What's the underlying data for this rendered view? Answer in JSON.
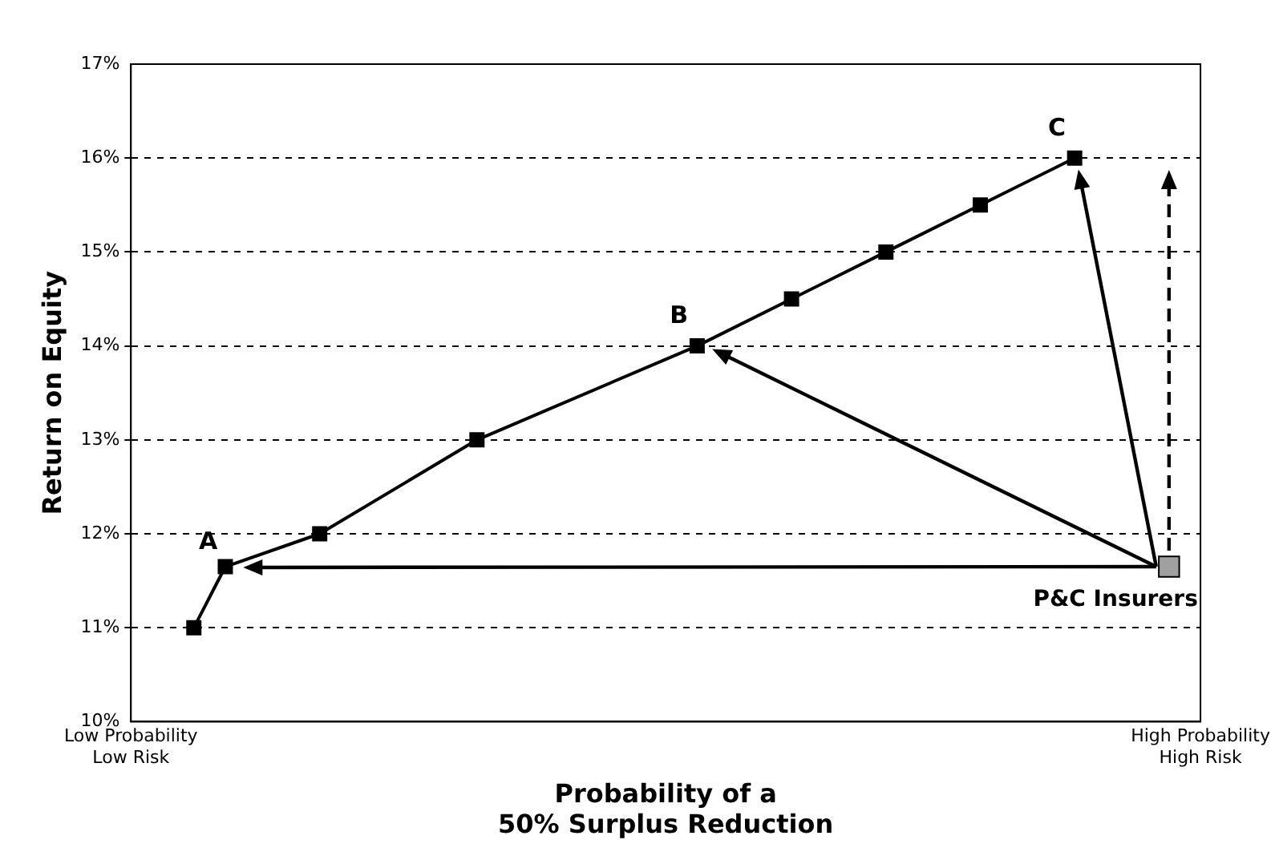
{
  "chart_data": {
    "type": "line",
    "xlabel": "Probability of a\n50% Surplus Reduction",
    "ylabel": "Return on Equity",
    "categories": [
      "Low Probability\nLow Risk",
      null,
      null,
      null,
      null,
      null,
      null,
      null,
      null,
      null,
      null,
      null,
      null,
      null,
      null,
      null,
      null,
      null,
      null,
      null,
      null,
      null,
      null,
      null,
      null,
      null,
      null,
      null,
      null,
      null,
      null,
      null,
      null,
      null,
      "High Probability\nHigh Risk"
    ],
    "ylim": [
      10,
      17
    ],
    "yticks": [
      {
        "value": 10,
        "label": "10%"
      },
      {
        "value": 11,
        "label": "11%"
      },
      {
        "value": 12,
        "label": "12%"
      },
      {
        "value": 13,
        "label": "13%"
      },
      {
        "value": 14,
        "label": "14%"
      },
      {
        "value": 15,
        "label": "15%"
      },
      {
        "value": 16,
        "label": "16%"
      },
      {
        "value": 17,
        "label": "17%"
      }
    ],
    "grid": "y",
    "legend": false,
    "marker": "square",
    "series": [
      {
        "color": "#000000",
        "values": [
          null,
          null,
          11,
          11.65,
          null,
          null,
          12,
          null,
          null,
          null,
          null,
          13,
          null,
          null,
          null,
          null,
          null,
          null,
          14,
          null,
          null,
          14.5,
          null,
          null,
          15,
          null,
          null,
          15.5,
          null,
          null,
          16,
          null,
          null,
          null,
          null
        ]
      },
      {
        "type": "scatter",
        "name": "P&C Insurers",
        "color": "#a0a0a0",
        "values": [
          null,
          null,
          null,
          null,
          null,
          null,
          null,
          null,
          null,
          null,
          null,
          null,
          null,
          null,
          null,
          null,
          null,
          null,
          null,
          null,
          null,
          null,
          null,
          null,
          null,
          null,
          null,
          null,
          null,
          null,
          null,
          null,
          null,
          11.65,
          null
        ]
      }
    ],
    "annotations": [
      "A",
      "B",
      "C"
    ]
  }
}
